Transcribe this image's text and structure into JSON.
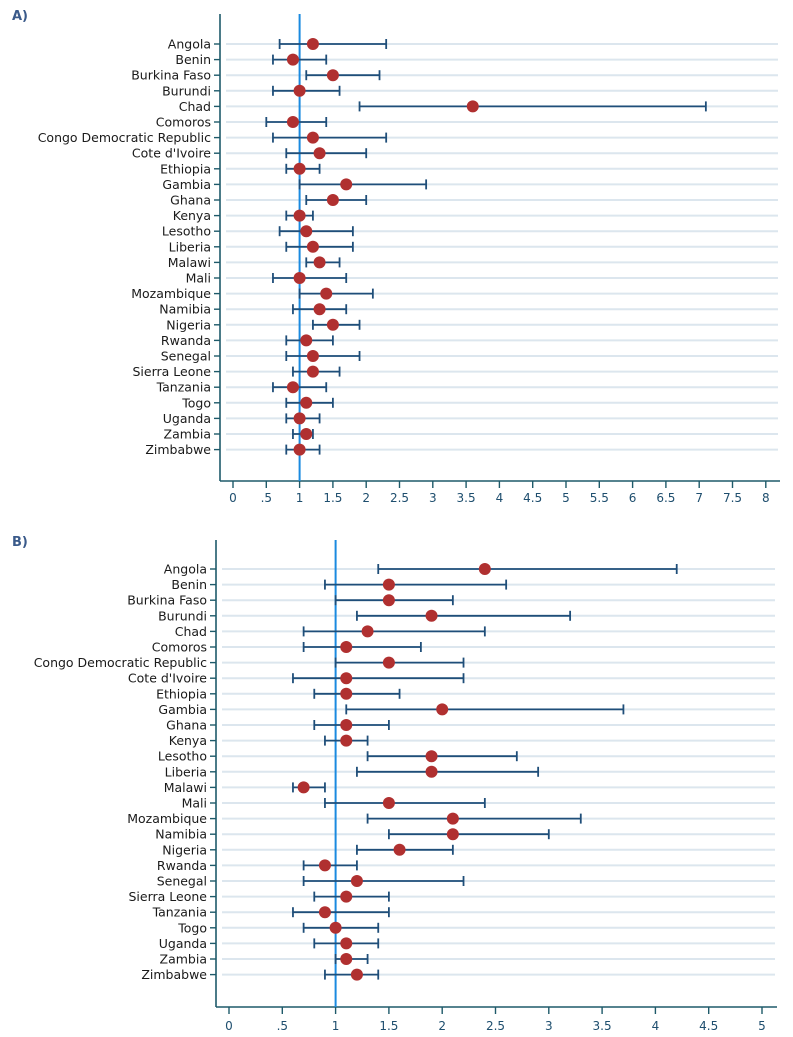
{
  "chart_data": [
    {
      "type": "scatter",
      "subtype": "forest-plot-with-confidence-intervals",
      "panel_label": "A)",
      "title": "",
      "xlabel": "",
      "ylabel": "",
      "xlim": [
        0,
        8
      ],
      "reference_line": 1,
      "x_ticks": [
        0,
        0.5,
        1,
        1.5,
        2,
        2.5,
        3,
        3.5,
        4,
        4.5,
        5,
        5.5,
        6,
        6.5,
        7,
        7.5,
        8
      ],
      "x_tick_labels": [
        "0",
        ".5",
        "1",
        "1.5",
        "2",
        "2.5",
        "3",
        "3.5",
        "4",
        "4.5",
        "5",
        "5.5",
        "6",
        "6.5",
        "7",
        "7.5",
        "8"
      ],
      "grid": "horizontal",
      "categories": [
        "Angola",
        "Benin",
        "Burkina Faso",
        "Burundi",
        "Chad",
        "Comoros",
        "Congo Democratic Republic",
        "Cote d'Ivoire",
        "Ethiopia",
        "Gambia",
        "Ghana",
        "Kenya",
        "Lesotho",
        "Liberia",
        "Malawi",
        "Mali",
        "Mozambique",
        "Namibia",
        "Nigeria",
        "Rwanda",
        "Senegal",
        "Sierra Leone",
        "Tanzania",
        "Togo",
        "Uganda",
        "Zambia",
        "Zimbabwe"
      ],
      "estimate": [
        1.2,
        0.9,
        1.5,
        1.0,
        3.6,
        0.9,
        1.2,
        1.3,
        1.0,
        1.7,
        1.5,
        1.0,
        1.1,
        1.2,
        1.3,
        1.0,
        1.4,
        1.3,
        1.5,
        1.1,
        1.2,
        1.2,
        0.9,
        1.1,
        1.0,
        1.1,
        1.0
      ],
      "lower": [
        0.7,
        0.6,
        1.1,
        0.6,
        1.9,
        0.5,
        0.6,
        0.8,
        0.8,
        1.0,
        1.1,
        0.8,
        0.7,
        0.8,
        1.1,
        0.6,
        1.0,
        0.9,
        1.2,
        0.8,
        0.8,
        0.9,
        0.6,
        0.8,
        0.8,
        0.9,
        0.8
      ],
      "upper": [
        2.3,
        1.4,
        2.2,
        1.6,
        7.1,
        1.4,
        2.3,
        2.0,
        1.3,
        2.9,
        2.0,
        1.2,
        1.8,
        1.8,
        1.6,
        1.7,
        2.1,
        1.7,
        1.9,
        1.5,
        1.9,
        1.6,
        1.4,
        1.5,
        1.3,
        1.2,
        1.3
      ]
    },
    {
      "type": "scatter",
      "subtype": "forest-plot-with-confidence-intervals",
      "panel_label": "B)",
      "title": "",
      "xlabel": "",
      "ylabel": "",
      "xlim": [
        0,
        5
      ],
      "reference_line": 1,
      "x_ticks": [
        0,
        0.5,
        1,
        1.5,
        2,
        2.5,
        3,
        3.5,
        4,
        4.5,
        5
      ],
      "x_tick_labels": [
        "0",
        ".5",
        "1",
        "1.5",
        "2",
        "2.5",
        "3",
        "3.5",
        "4",
        "4.5",
        "5"
      ],
      "grid": "horizontal",
      "categories": [
        "Angola",
        "Benin",
        "Burkina Faso",
        "Burundi",
        "Chad",
        "Comoros",
        "Congo Democratic Republic",
        "Cote d'Ivoire",
        "Ethiopia",
        "Gambia",
        "Ghana",
        "Kenya",
        "Lesotho",
        "Liberia",
        "Malawi",
        "Mali",
        "Mozambique",
        "Namibia",
        "Nigeria",
        "Rwanda",
        "Senegal",
        "Sierra Leone",
        "Tanzania",
        "Togo",
        "Uganda",
        "Zambia",
        "Zimbabwe"
      ],
      "estimate": [
        2.4,
        1.5,
        1.5,
        1.9,
        1.3,
        1.1,
        1.5,
        1.1,
        1.1,
        2.0,
        1.1,
        1.1,
        1.9,
        1.9,
        0.7,
        1.5,
        2.1,
        2.1,
        1.6,
        0.9,
        1.2,
        1.1,
        0.9,
        1.0,
        1.1,
        1.1,
        1.2
      ],
      "lower": [
        1.4,
        0.9,
        1.0,
        1.2,
        0.7,
        0.7,
        1.0,
        0.6,
        0.8,
        1.1,
        0.8,
        0.9,
        1.3,
        1.2,
        0.6,
        0.9,
        1.3,
        1.5,
        1.2,
        0.7,
        0.7,
        0.8,
        0.6,
        0.7,
        0.8,
        1.0,
        0.9
      ],
      "upper": [
        4.2,
        2.6,
        2.1,
        3.2,
        2.4,
        1.8,
        2.2,
        2.2,
        1.6,
        3.7,
        1.5,
        1.3,
        2.7,
        2.9,
        0.9,
        2.4,
        3.3,
        3.0,
        2.1,
        1.2,
        2.2,
        1.5,
        1.5,
        1.4,
        1.4,
        1.3,
        1.4
      ]
    }
  ],
  "colors": {
    "ci_line": "#1f4e79",
    "point": "#b03030",
    "reference_line": "#1a8ae0",
    "grid": "#dce6ee",
    "axis": "#1e5a6a",
    "tick_text": "#1e4e6e",
    "panel_label": "#3a5a8a"
  }
}
